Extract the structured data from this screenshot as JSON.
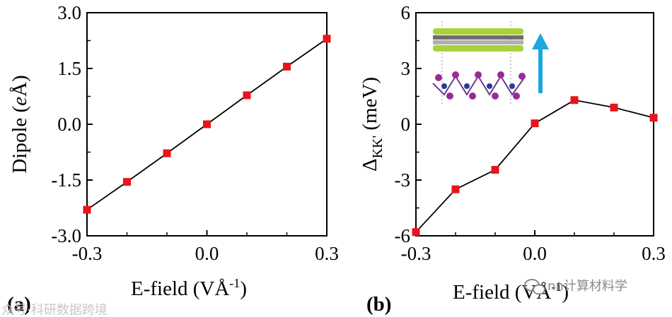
{
  "chart_data": [
    {
      "type": "line",
      "panel_label": "(a)",
      "x": [
        -0.3,
        -0.2,
        -0.1,
        0.0,
        0.1,
        0.2,
        0.3
      ],
      "series": [
        {
          "name": "Dipole",
          "values": [
            -2.3,
            -1.55,
            -0.78,
            0.0,
            0.78,
            1.55,
            2.3
          ],
          "marker": "square",
          "marker_color": "#e8141b",
          "line_color": "#000000"
        }
      ],
      "xlabel": "E-field (VÅ",
      "xlabel_sup": "-1",
      "xlabel_end": ")",
      "ylabel": "Dipole (",
      "ylabel_italic": "e",
      "ylabel_end": "Å)",
      "xlim": [
        -0.3,
        0.3
      ],
      "ylim": [
        -3.0,
        3.0
      ],
      "xticks": [
        "-0.3",
        "0.0",
        "0.3"
      ],
      "yticks": [
        "-3.0",
        "-1.5",
        "0.0",
        "1.5",
        "3.0"
      ]
    },
    {
      "type": "line",
      "panel_label": "(b)",
      "x": [
        -0.3,
        -0.2,
        -0.1,
        0.0,
        0.1,
        0.2,
        0.3
      ],
      "series": [
        {
          "name": "Delta_KK'",
          "values": [
            -5.8,
            -3.5,
            -2.45,
            0.05,
            1.3,
            0.9,
            0.35
          ],
          "marker": "square",
          "marker_color": "#e8141b",
          "line_color": "#000000"
        }
      ],
      "xlabel": "E-field (VÅ",
      "xlabel_sup": "-1",
      "xlabel_end": ")",
      "ylabel": "Δ",
      "ylabel_sub": "KK'",
      "ylabel_end": " (meV)",
      "xlim": [
        -0.3,
        0.3
      ],
      "ylim": [
        -6,
        6
      ],
      "xticks": [
        "-0.3",
        "0.0",
        "0.3"
      ],
      "yticks": [
        "-6",
        "-3",
        "0",
        "3",
        "6"
      ],
      "inset": {
        "description_icon": "heterostructure-icon",
        "arrow_color": "#1ea7dd"
      }
    }
  ],
  "watermark": {
    "left": "众号·科研数据跨境",
    "right": "nn计算材料学"
  }
}
